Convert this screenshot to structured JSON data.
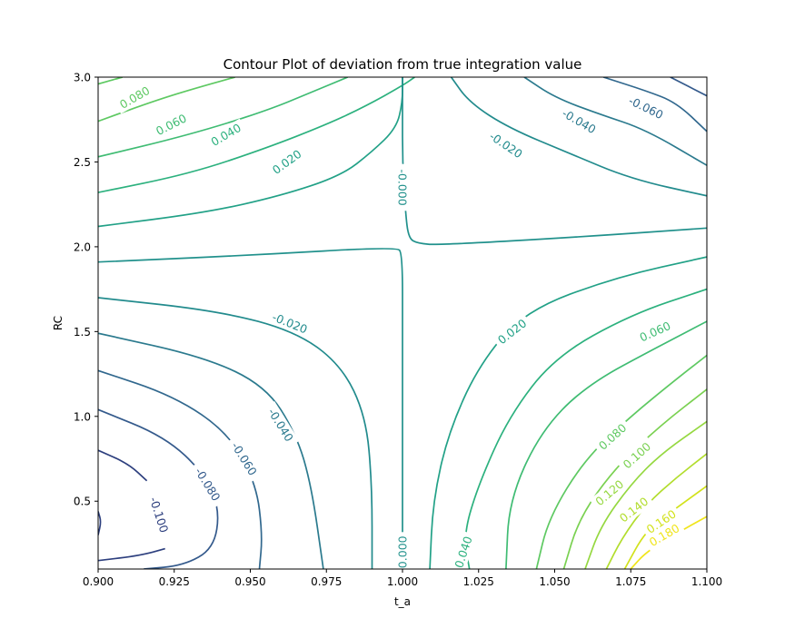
{
  "chart_data": {
    "type": "contour",
    "title": "Contour Plot of deviation from true integration value",
    "xlabel": "t_a",
    "ylabel": "RC",
    "xlim": [
      0.9,
      1.1
    ],
    "ylim": [
      0.1,
      3.0
    ],
    "x_ticks": [
      0.9,
      0.925,
      0.95,
      0.975,
      1.0,
      1.025,
      1.05,
      1.075,
      1.1
    ],
    "x_tick_labels": [
      "0.900",
      "0.925",
      "0.950",
      "0.975",
      "1.000",
      "1.025",
      "1.050",
      "1.075",
      "1.100"
    ],
    "y_ticks": [
      0.5,
      1.0,
      1.5,
      2.0,
      2.5,
      3.0
    ],
    "y_tick_labels": [
      "0.5",
      "1.0",
      "1.5",
      "2.0",
      "2.5",
      "3.0"
    ],
    "grid": false,
    "levels": [
      -0.1,
      -0.08,
      -0.06,
      -0.04,
      -0.02,
      0.0,
      0.02,
      0.04,
      0.06,
      0.08,
      0.1,
      0.12,
      0.14,
      0.16,
      0.18
    ],
    "colormap": "viridis",
    "level_colors": {
      "-0.1": "#2d3f7e",
      "-0.08": "#345a8c",
      "-0.06": "#31688e",
      "-0.04": "#2b7a8e",
      "-0.02": "#228b8d",
      "0.0": "#21918c",
      "0.02": "#22a187",
      "0.04": "#2cb17e",
      "0.06": "#3fbc73",
      "0.08": "#5ec962",
      "0.1": "#7ad151",
      "0.12": "#95d840",
      "0.14": "#b2dd2d",
      "0.16": "#d2e21b",
      "0.18": "#f0e51c"
    },
    "contour_lines": [
      {
        "level": 0.08,
        "points": [
          [
            0.9,
            2.96
          ],
          [
            0.906,
            2.99
          ],
          [
            0.908,
            3.0
          ]
        ]
      },
      {
        "level": 0.08,
        "points": [
          [
            0.9,
            2.74
          ],
          [
            0.92,
            2.87
          ],
          [
            0.935,
            2.95
          ],
          [
            0.945,
            3.0
          ]
        ]
      },
      {
        "level": 0.06,
        "points": [
          [
            0.9,
            2.53
          ],
          [
            0.93,
            2.66
          ],
          [
            0.955,
            2.8
          ],
          [
            0.97,
            2.91
          ],
          [
            0.982,
            3.0
          ]
        ]
      },
      {
        "level": 0.04,
        "points": [
          [
            0.9,
            2.32
          ],
          [
            0.93,
            2.43
          ],
          [
            0.955,
            2.58
          ],
          [
            0.975,
            2.72
          ],
          [
            0.988,
            2.83
          ],
          [
            1.0,
            2.95
          ],
          [
            1.004,
            3.0
          ]
        ]
      },
      {
        "level": 0.02,
        "points": [
          [
            0.9,
            2.12
          ],
          [
            0.935,
            2.2
          ],
          [
            0.96,
            2.3
          ],
          [
            0.98,
            2.42
          ],
          [
            0.99,
            2.56
          ],
          [
            0.998,
            2.7
          ],
          [
            1.0,
            2.85
          ],
          [
            1.0,
            3.0
          ]
        ]
      },
      {
        "level": 0.0,
        "points": [
          [
            1.0,
            3.0
          ],
          [
            1.0,
            2.8
          ],
          [
            1.0,
            2.5
          ],
          [
            1.001,
            2.2
          ],
          [
            1.002,
            2.05
          ],
          [
            1.005,
            2.02
          ],
          [
            1.012,
            2.01
          ],
          [
            1.06,
            2.06
          ],
          [
            1.1,
            2.11
          ]
        ]
      },
      {
        "level": -0.02,
        "points": [
          [
            1.016,
            3.0
          ],
          [
            1.022,
            2.85
          ],
          [
            1.035,
            2.7
          ],
          [
            1.055,
            2.55
          ],
          [
            1.075,
            2.4
          ],
          [
            1.1,
            2.3
          ]
        ]
      },
      {
        "level": -0.04,
        "points": [
          [
            1.04,
            3.0
          ],
          [
            1.05,
            2.88
          ],
          [
            1.065,
            2.78
          ],
          [
            1.08,
            2.69
          ],
          [
            1.1,
            2.48
          ]
        ]
      },
      {
        "level": -0.06,
        "points": [
          [
            1.066,
            3.0
          ],
          [
            1.08,
            2.92
          ],
          [
            1.09,
            2.85
          ],
          [
            1.1,
            2.68
          ]
        ]
      },
      {
        "level": -0.08,
        "points": [
          [
            1.088,
            3.0
          ],
          [
            1.1,
            2.89
          ]
        ]
      },
      {
        "level": 0.0,
        "points": [
          [
            0.9,
            1.91
          ],
          [
            0.95,
            1.95
          ],
          [
            0.998,
            2.0
          ],
          [
            1.0,
            1.96
          ],
          [
            1.0,
            1.5
          ],
          [
            1.0,
            1.0
          ],
          [
            1.0,
            0.5
          ],
          [
            1.0,
            0.1
          ]
        ]
      },
      {
        "level": -0.02,
        "points": [
          [
            0.9,
            1.7
          ],
          [
            0.94,
            1.62
          ],
          [
            0.965,
            1.5
          ],
          [
            0.98,
            1.3
          ],
          [
            0.988,
            1.0
          ],
          [
            0.99,
            0.6
          ],
          [
            0.99,
            0.1
          ]
        ]
      },
      {
        "level": -0.04,
        "points": [
          [
            0.9,
            1.49
          ],
          [
            0.935,
            1.35
          ],
          [
            0.955,
            1.18
          ],
          [
            0.965,
            0.9
          ],
          [
            0.97,
            0.6
          ],
          [
            0.974,
            0.1
          ]
        ]
      },
      {
        "level": -0.06,
        "points": [
          [
            0.9,
            1.27
          ],
          [
            0.925,
            1.12
          ],
          [
            0.943,
            0.9
          ],
          [
            0.952,
            0.6
          ],
          [
            0.954,
            0.3
          ],
          [
            0.953,
            0.1
          ]
        ]
      },
      {
        "level": -0.08,
        "points": [
          [
            0.9,
            1.04
          ],
          [
            0.922,
            0.88
          ],
          [
            0.935,
            0.66
          ],
          [
            0.94,
            0.45
          ],
          [
            0.938,
            0.22
          ],
          [
            0.928,
            0.12
          ],
          [
            0.915,
            0.1
          ]
        ]
      },
      {
        "level": -0.1,
        "points": [
          [
            0.9,
            0.8
          ],
          [
            0.91,
            0.72
          ],
          [
            0.916,
            0.62
          ]
        ]
      },
      {
        "level": -0.1,
        "points": [
          [
            0.9,
            0.15
          ],
          [
            0.914,
            0.18
          ],
          [
            0.922,
            0.22
          ]
        ]
      },
      {
        "level": -0.1,
        "points": [
          [
            0.9,
            0.44
          ],
          [
            0.901,
            0.38
          ],
          [
            0.9,
            0.3
          ]
        ]
      },
      {
        "level": 0.02,
        "points": [
          [
            1.1,
            1.94
          ],
          [
            1.07,
            1.82
          ],
          [
            1.04,
            1.62
          ],
          [
            1.025,
            1.3
          ],
          [
            1.015,
            0.9
          ],
          [
            1.01,
            0.5
          ],
          [
            1.009,
            0.1
          ]
        ]
      },
      {
        "level": 0.04,
        "points": [
          [
            1.1,
            1.75
          ],
          [
            1.075,
            1.6
          ],
          [
            1.05,
            1.35
          ],
          [
            1.035,
            1.0
          ],
          [
            1.025,
            0.6
          ],
          [
            1.02,
            0.3
          ],
          [
            1.022,
            0.1
          ]
        ]
      },
      {
        "level": 0.06,
        "points": [
          [
            1.1,
            1.56
          ],
          [
            1.085,
            1.42
          ],
          [
            1.06,
            1.18
          ],
          [
            1.045,
            0.9
          ],
          [
            1.035,
            0.5
          ],
          [
            1.034,
            0.1
          ]
        ]
      },
      {
        "level": 0.08,
        "points": [
          [
            1.1,
            1.36
          ],
          [
            1.09,
            1.22
          ],
          [
            1.075,
            1.0
          ],
          [
            1.06,
            0.75
          ],
          [
            1.048,
            0.4
          ],
          [
            1.044,
            0.1
          ]
        ]
      },
      {
        "level": 0.1,
        "points": [
          [
            1.1,
            1.16
          ],
          [
            1.085,
            0.95
          ],
          [
            1.07,
            0.7
          ],
          [
            1.058,
            0.4
          ],
          [
            1.053,
            0.1
          ]
        ]
      },
      {
        "level": 0.12,
        "points": [
          [
            1.1,
            0.97
          ],
          [
            1.085,
            0.78
          ],
          [
            1.075,
            0.6
          ],
          [
            1.065,
            0.35
          ],
          [
            1.06,
            0.1
          ]
        ]
      },
      {
        "level": 0.14,
        "points": [
          [
            1.1,
            0.78
          ],
          [
            1.09,
            0.64
          ],
          [
            1.08,
            0.48
          ],
          [
            1.072,
            0.28
          ],
          [
            1.067,
            0.1
          ]
        ]
      },
      {
        "level": 0.16,
        "points": [
          [
            1.1,
            0.59
          ],
          [
            1.09,
            0.46
          ],
          [
            1.08,
            0.33
          ],
          [
            1.073,
            0.1
          ]
        ]
      },
      {
        "level": 0.18,
        "points": [
          [
            1.1,
            0.41
          ],
          [
            1.09,
            0.31
          ],
          [
            1.08,
            0.2
          ],
          [
            1.075,
            0.1
          ]
        ]
      }
    ],
    "contour_labels": [
      {
        "text": "0.080",
        "x": 0.912,
        "y": 2.88,
        "angle": -30,
        "level": 0.08
      },
      {
        "text": "0.060",
        "x": 0.924,
        "y": 2.72,
        "angle": -27,
        "level": 0.06
      },
      {
        "text": "0.040",
        "x": 0.942,
        "y": 2.66,
        "angle": -30,
        "level": 0.04
      },
      {
        "text": "0.020",
        "x": 0.962,
        "y": 2.5,
        "angle": -36,
        "level": 0.02
      },
      {
        "text": "-0.000",
        "x": 1.0,
        "y": 2.35,
        "angle": 90,
        "level": 0.0
      },
      {
        "text": "-0.020",
        "x": 1.034,
        "y": 2.6,
        "angle": 34,
        "level": -0.02
      },
      {
        "text": "-0.040",
        "x": 1.058,
        "y": 2.74,
        "angle": 30,
        "level": -0.04
      },
      {
        "text": "-0.060",
        "x": 1.08,
        "y": 2.82,
        "angle": 26,
        "level": -0.06
      },
      {
        "text": "-0.020",
        "x": 0.963,
        "y": 1.55,
        "angle": 22,
        "level": -0.02
      },
      {
        "text": "-0.040",
        "x": 0.96,
        "y": 0.95,
        "angle": 58,
        "level": -0.04
      },
      {
        "text": "-0.060",
        "x": 0.948,
        "y": 0.75,
        "angle": 58,
        "level": -0.06
      },
      {
        "text": "-0.080",
        "x": 0.936,
        "y": 0.6,
        "angle": 58,
        "level": -0.08
      },
      {
        "text": "-0.100",
        "x": 0.92,
        "y": 0.42,
        "angle": 72,
        "level": -0.1
      },
      {
        "text": "0.000",
        "x": 1.0,
        "y": 0.2,
        "angle": -90,
        "level": 0.0
      },
      {
        "text": "0.040",
        "x": 1.02,
        "y": 0.2,
        "angle": -72,
        "level": 0.04
      },
      {
        "text": "0.020",
        "x": 1.036,
        "y": 1.5,
        "angle": -38,
        "level": 0.02
      },
      {
        "text": "0.060",
        "x": 1.083,
        "y": 1.5,
        "angle": -24,
        "level": 0.06
      },
      {
        "text": "0.080",
        "x": 1.069,
        "y": 0.88,
        "angle": -42,
        "level": 0.08
      },
      {
        "text": "0.100",
        "x": 1.077,
        "y": 0.77,
        "angle": -42,
        "level": 0.1
      },
      {
        "text": "0.120",
        "x": 1.068,
        "y": 0.55,
        "angle": -40,
        "level": 0.12
      },
      {
        "text": "0.140",
        "x": 1.076,
        "y": 0.45,
        "angle": -38,
        "level": 0.14
      },
      {
        "text": "0.160",
        "x": 1.085,
        "y": 0.38,
        "angle": -34,
        "level": 0.16
      },
      {
        "text": "0.180",
        "x": 1.086,
        "y": 0.3,
        "angle": -30,
        "level": 0.18
      }
    ]
  }
}
